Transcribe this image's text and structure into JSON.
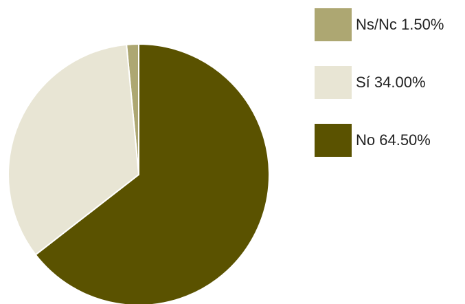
{
  "chart_data": {
    "type": "pie",
    "title": "",
    "slices": [
      {
        "label": "Ns/Nc",
        "value": 1.5,
        "display": "Ns/Nc 1.50%",
        "color": "#ada772"
      },
      {
        "label": "Sí",
        "value": 34.0,
        "display": "Sí 34.00%",
        "color": "#e8e5d4"
      },
      {
        "label": "No",
        "value": 64.5,
        "display": "No 64.50%",
        "color": "#5a5200"
      }
    ],
    "legend_position": "top-right"
  }
}
